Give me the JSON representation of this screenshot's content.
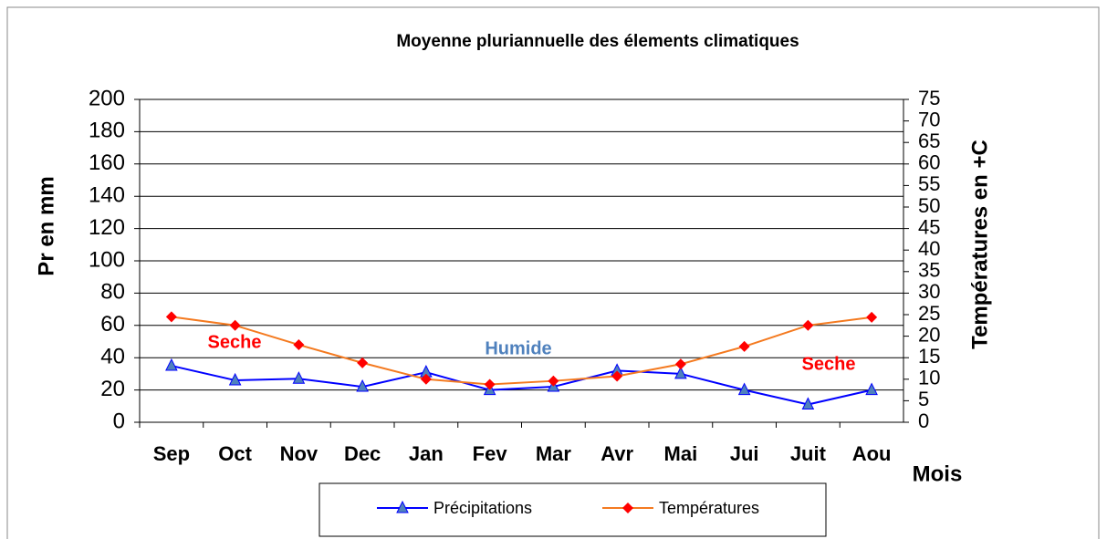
{
  "chart_data": {
    "type": "line",
    "title": "Moyenne pluriannuelle des élements  climatiques",
    "categories": [
      "Sep",
      "Oct",
      "Nov",
      "Dec",
      "Jan",
      "Fev",
      "Mar",
      "Avr",
      "Mai",
      "Jui",
      "Juit",
      "Aou"
    ],
    "series": [
      {
        "name": "Précipitations",
        "color": "#0000ff",
        "marker_color": "#4f81bd",
        "marker": "triangle",
        "values": [
          35,
          26,
          27,
          22,
          31,
          20,
          22,
          32,
          30,
          20,
          11,
          20
        ]
      },
      {
        "name": "Températures",
        "color": "#f47a20",
        "marker_color": "#ff0000",
        "marker": "diamond",
        "axis": "y2",
        "values": [
          24.5,
          22.5,
          18,
          13.8,
          10,
          8.8,
          9.6,
          10.7,
          13.5,
          17.6,
          22.5,
          24.4
        ]
      }
    ],
    "ylabel": "Pr en mm",
    "y2label": "Températures en +C",
    "xlabel": "Mois",
    "ylim": [
      0,
      200
    ],
    "yticks": [
      0,
      20,
      40,
      60,
      80,
      100,
      120,
      140,
      160,
      180,
      200
    ],
    "y2lim": [
      0,
      75
    ],
    "y2ticks": [
      0,
      5,
      10,
      15,
      20,
      25,
      30,
      35,
      40,
      45,
      50,
      55,
      60,
      65,
      70,
      75
    ],
    "grid": true,
    "legend": "bottom",
    "annotations": [
      {
        "text": "Seche",
        "color": "#ff0000"
      },
      {
        "text": "Humide",
        "color": "#4f81bd"
      },
      {
        "text": "Seche",
        "color": "#ff0000"
      }
    ]
  }
}
